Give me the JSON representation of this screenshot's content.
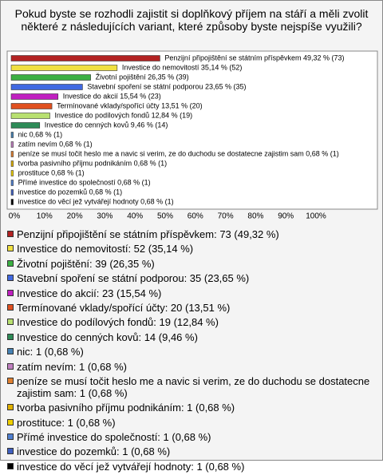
{
  "chart_data": {
    "type": "bar",
    "orientation": "horizontal",
    "title": "Pokud byste se rozhodli zajistit si doplňkový příjem na stáří a měli zvolit některé z následujících variant, které způsoby byste nejspíše využili?",
    "values": [
      49.32,
      35.14,
      26.35,
      23.65,
      15.54,
      13.51,
      12.84,
      9.46,
      0.68,
      0.68,
      0.68,
      0.68,
      0.68,
      0.68,
      0.68,
      0.68
    ],
    "value_labels": [
      "Penzijní připojištění se státním příspěvkem 49,32 % (73)",
      "Investice do nemovitostí 35,14 % (52)",
      "Životní pojištění 26,35 % (39)",
      "Stavební spoření se státní podporou 23,65 % (35)",
      "Investice do akcií 15,54 % (23)",
      "Termínované vklady/spořící účty 13,51 % (20)",
      "Investice do podílových fondů 12,84 % (19)",
      "Investice do cenných kovů 9,46 % (14)",
      "nic 0,68 % (1)",
      "zatím nevím 0,68 % (1)",
      "peníze se musí točit heslo me a navic si verim,  ze do duchodu se dostatecne zajistim sam 0,68 % (1)",
      "tvorba pasivního příjmu podnikáním 0,68 % (1)",
      "prostituce 0,68 % (1)",
      "Přímé investice do společností 0,68 % (1)",
      "investice do pozemků 0,68 % (1)",
      "investice do věcí jež vytvářejí hodnoty 0,68 % (1)"
    ],
    "colors": [
      "#b22222",
      "#f0e040",
      "#3cb043",
      "#4169e1",
      "#c020c0",
      "#e05020",
      "#b8e070",
      "#2e8b57",
      "#4682b4",
      "#c080c0",
      "#e08030",
      "#e0b000",
      "#f0d000",
      "#5080d0",
      "#4060c0",
      "#000000"
    ],
    "legend": [
      "Penzijní připojištění se státním příspěvkem: 73 (49,32 %)",
      "Investice do nemovitostí: 52 (35,14 %)",
      "Životní pojištění: 39 (26,35 %)",
      "Stavební spoření se státní podporou: 35 (23,65 %)",
      "Investice do akcií: 23 (15,54 %)",
      "Termínované vklady/spořící účty: 20 (13,51 %)",
      "Investice do podílových fondů: 19 (12,84 %)",
      "Investice do cenných kovů: 14 (9,46 %)",
      "nic: 1 (0,68 %)",
      "zatím nevím: 1 (0,68 %)",
      "peníze se musí točit heslo me a navic si verim,  ze do duchodu se dostatecne zajistim sam: 1 (0,68 %)",
      "tvorba pasivního příjmu podnikáním: 1 (0,68 %)",
      "prostituce: 1 (0,68 %)",
      "Přímé investice do společností: 1 (0,68 %)",
      "investice do pozemků: 1 (0,68 %)",
      "investice do věcí jež vytvářejí hodnoty: 1 (0,68 %)"
    ],
    "xlim": [
      0,
      100
    ],
    "xticks": [
      {
        "value": 0,
        "label": "0%"
      },
      {
        "value": 10,
        "label": "10%"
      },
      {
        "value": 20,
        "label": "20%"
      },
      {
        "value": 30,
        "label": "30%"
      },
      {
        "value": 40,
        "label": "40%"
      },
      {
        "value": 50,
        "label": "50%"
      },
      {
        "value": 60,
        "label": "60%"
      },
      {
        "value": 70,
        "label": "70%"
      },
      {
        "value": 80,
        "label": "80%"
      },
      {
        "value": 90,
        "label": "90%"
      },
      {
        "value": 100,
        "label": "100%"
      }
    ]
  }
}
